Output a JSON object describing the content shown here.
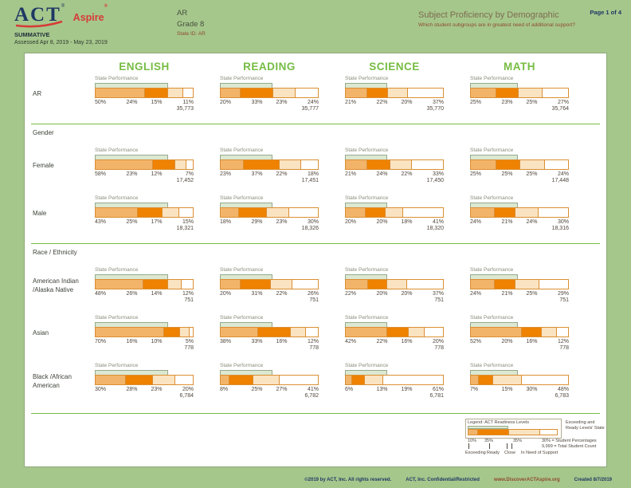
{
  "header": {
    "logo_act": "ACT",
    "logo_aspire": "Aspire",
    "program": "SUMMATIVE",
    "assessed": "Assessed Apr 8, 2019 - May 23, 2019",
    "org": "AR",
    "grade": "Grade 8",
    "state_id": "State ID: AR",
    "report_title": "Subject Proficiency by Demographic",
    "report_question": "Which student subgroups are in greatest need of additional support?",
    "page_label": "Page 1 of 4"
  },
  "subjects": [
    "ENGLISH",
    "READING",
    "SCIENCE",
    "MATH"
  ],
  "state_performance_label": "State Performance",
  "state_exceeding_ready_pcts": [
    74,
    53,
    43,
    48
  ],
  "colors": {
    "background_green": "#a6c78c",
    "accent_green": "#76bc43",
    "navy": "#1f3864",
    "maroon": "#8e4a2d",
    "segment_exceeding": "#f2b469",
    "segment_ready": "#ef8200",
    "segment_close": "#fae3c1",
    "segment_in_need": "#ffffff",
    "bar_border": "#db8f33",
    "state_overlay": "#dce8d2"
  },
  "sections": [
    {
      "header": null,
      "divider_before": false,
      "rows": [
        {
          "label": "AR",
          "cells": [
            {
              "values": [
                50,
                24,
                15,
                11
              ],
              "total": "35,773"
            },
            {
              "values": [
                20,
                33,
                23,
                24
              ],
              "total": "35,777"
            },
            {
              "values": [
                21,
                22,
                20,
                37
              ],
              "total": "35,770"
            },
            {
              "values": [
                25,
                23,
                25,
                27
              ],
              "total": "35,764"
            }
          ]
        }
      ]
    },
    {
      "header": "Gender",
      "divider_before": true,
      "rows": [
        {
          "label": "Female",
          "cells": [
            {
              "values": [
                58,
                23,
                12,
                7
              ],
              "total": "17,452"
            },
            {
              "values": [
                23,
                37,
                22,
                18
              ],
              "total": "17,451"
            },
            {
              "values": [
                21,
                24,
                22,
                33
              ],
              "total": "17,450"
            },
            {
              "values": [
                25,
                25,
                25,
                24
              ],
              "total": "17,448"
            }
          ]
        },
        {
          "label": "Male",
          "cells": [
            {
              "values": [
                43,
                25,
                17,
                15
              ],
              "total": "18,321"
            },
            {
              "values": [
                18,
                29,
                23,
                30
              ],
              "total": "18,326"
            },
            {
              "values": [
                20,
                20,
                18,
                41
              ],
              "total": "18,320"
            },
            {
              "values": [
                24,
                21,
                24,
                30
              ],
              "total": "18,316"
            }
          ]
        }
      ]
    },
    {
      "header": "Race / Ethnicity",
      "divider_before": true,
      "rows": [
        {
          "label": "American Indian /Alaska Native",
          "cells": [
            {
              "values": [
                48,
                26,
                14,
                12
              ],
              "total": "751"
            },
            {
              "values": [
                20,
                31,
                22,
                26
              ],
              "total": "751"
            },
            {
              "values": [
                22,
                20,
                20,
                37
              ],
              "total": "751"
            },
            {
              "values": [
                24,
                21,
                25,
                29
              ],
              "total": "751"
            }
          ]
        },
        {
          "label": "Asian",
          "cells": [
            {
              "values": [
                70,
                16,
                10,
                5
              ],
              "total": "778"
            },
            {
              "values": [
                38,
                33,
                16,
                12
              ],
              "total": "778"
            },
            {
              "values": [
                42,
                22,
                16,
                20
              ],
              "total": "778"
            },
            {
              "values": [
                52,
                20,
                16,
                12
              ],
              "total": "778"
            }
          ]
        },
        {
          "label": "Black /African American",
          "cells": [
            {
              "values": [
                30,
                28,
                23,
                20
              ],
              "total": "6,784"
            },
            {
              "values": [
                8,
                25,
                27,
                41
              ],
              "total": "6,782"
            },
            {
              "values": [
                6,
                13,
                19,
                61
              ],
              "total": "6,781"
            },
            {
              "values": [
                7,
                15,
                30,
                48
              ],
              "total": "6,783"
            }
          ]
        }
      ]
    }
  ],
  "legend": {
    "title": "Legend: ACT Readiness Levels",
    "sample_widths": [
      10,
      35,
      35,
      20
    ],
    "sample_labels": [
      "10%",
      "35%",
      "35%"
    ],
    "state_overlay_pct": 45,
    "levels": [
      "Exceeding",
      "Ready",
      "Close",
      "In Need of Support"
    ],
    "state_label": "Exceeding and Ready Levels' State",
    "pct_example": "30%",
    "pct_note": "= Student Percentages",
    "count_example": "9,999",
    "count_note": "= Total Student Count"
  },
  "footer": {
    "items": [
      "©2019 by ACT, Inc. All rights reserved.",
      "ACT, Inc. Confidential/Restricted",
      "www.DiscoverACTAspire.org",
      "Created 8/7/2019"
    ]
  }
}
